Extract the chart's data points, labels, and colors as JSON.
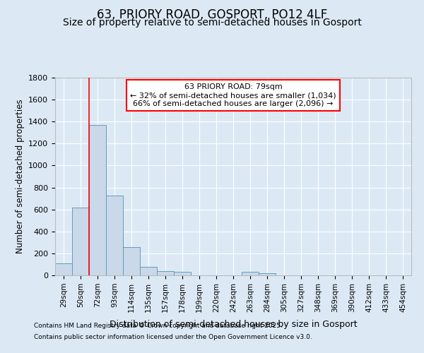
{
  "title": "63, PRIORY ROAD, GOSPORT, PO12 4LF",
  "subtitle": "Size of property relative to semi-detached houses in Gosport",
  "xlabel": "Distribution of semi-detached houses by size in Gosport",
  "ylabel": "Number of semi-detached properties",
  "footnote1": "Contains HM Land Registry data © Crown copyright and database right 2025.",
  "footnote2": "Contains public sector information licensed under the Open Government Licence v3.0.",
  "bin_labels": [
    "29sqm",
    "50sqm",
    "72sqm",
    "93sqm",
    "114sqm",
    "135sqm",
    "157sqm",
    "178sqm",
    "199sqm",
    "220sqm",
    "242sqm",
    "263sqm",
    "284sqm",
    "305sqm",
    "327sqm",
    "348sqm",
    "369sqm",
    "390sqm",
    "412sqm",
    "433sqm",
    "454sqm"
  ],
  "bar_values": [
    110,
    620,
    1370,
    725,
    255,
    80,
    40,
    30,
    0,
    0,
    0,
    30,
    20,
    0,
    0,
    0,
    0,
    0,
    0,
    0,
    0
  ],
  "bar_color": "#c9d9ea",
  "bar_edge_color": "#6699bb",
  "ylim": [
    0,
    1800
  ],
  "yticks": [
    0,
    200,
    400,
    600,
    800,
    1000,
    1200,
    1400,
    1600,
    1800
  ],
  "red_line_x": 1.5,
  "annotation_title": "63 PRIORY ROAD: 79sqm",
  "annotation_line1": "← 32% of semi-detached houses are smaller (1,034)",
  "annotation_line2": "66% of semi-detached houses are larger (2,096) →",
  "background_color": "#dce9f5",
  "plot_bg_color": "#dce9f5",
  "grid_color": "#ffffff",
  "title_fontsize": 12,
  "subtitle_fontsize": 10
}
